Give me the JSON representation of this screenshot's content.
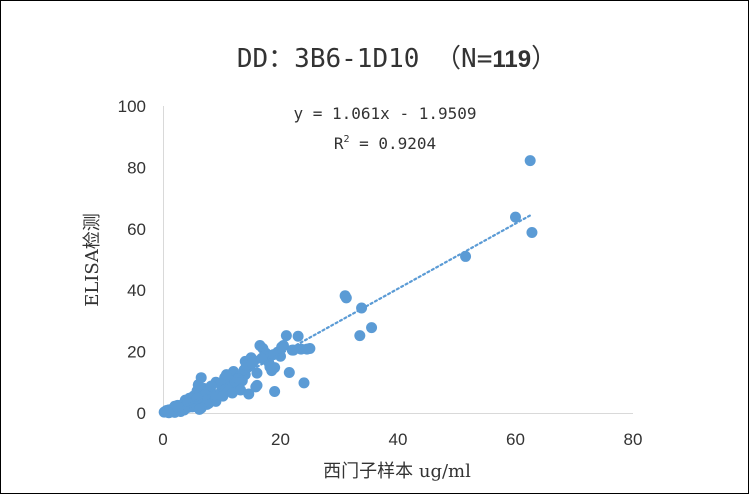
{
  "chart_data": {
    "type": "scatter",
    "title": {
      "main": "DD：3B6-1D10 （N=",
      "n": "119",
      "close": "）"
    },
    "xlabel": "西门子样本 ug/ml",
    "ylabel": "ELISA检测",
    "xlim": [
      0,
      80
    ],
    "ylim": [
      0,
      100
    ],
    "x_ticks": [
      "0",
      "20",
      "40",
      "60",
      "80"
    ],
    "y_ticks": [
      "0",
      "20",
      "40",
      "60",
      "80",
      "100"
    ],
    "grid": false,
    "legend": "none",
    "marker_color": "#5b9bd5",
    "trendline": {
      "type": "linear",
      "slope": 1.061,
      "intercept": -1.9509,
      "color": "#5b9bd5",
      "x_range": [
        1.85,
        62.8
      ],
      "equation_text": "y = 1.061x - 1.9509",
      "r2_prefix": "R",
      "r2_sup": "2",
      "r2_suffix": " = 0.9204"
    },
    "x": [
      0.2,
      0.4,
      0.6,
      0.8,
      1.0,
      1.2,
      1.5,
      1.8,
      2.0,
      2.2,
      2.5,
      2.8,
      3.0,
      3.2,
      3.5,
      3.8,
      4.0,
      4.2,
      4.5,
      4.8,
      5.0,
      5.2,
      5.5,
      5.8,
      6.0,
      6.2,
      6.5,
      6.8,
      7.0,
      7.2,
      7.5,
      7.8,
      8.0,
      8.5,
      9.0,
      9.5,
      10.0,
      10.5,
      11.0,
      11.5,
      12.0,
      12.5,
      13.0,
      13.5,
      14.0,
      14.5,
      15.0,
      15.5,
      16.0,
      16.5,
      17.0,
      17.5,
      18.0,
      18.5,
      19.0,
      19.5,
      20.0,
      20.5,
      21.0,
      22.0,
      23.0,
      23.5,
      24.0,
      25.0,
      24.5,
      21.5,
      19.0,
      16.0,
      14.0,
      12.5,
      11.0,
      9.0,
      7.5,
      6.5,
      5.5,
      3.0,
      2.0,
      1.0,
      0.5,
      4.5,
      6.2,
      8.8,
      10.2,
      11.8,
      13.2,
      14.6,
      15.8,
      17.2,
      18.2,
      19.8,
      20.2,
      22.2,
      31.0,
      31.2,
      33.8,
      33.5,
      35.5,
      51.5,
      60.0,
      62.5,
      62.8,
      12.2,
      13.8,
      9.8,
      8.2,
      7.2,
      5.8,
      4.2,
      3.6,
      2.6,
      1.6,
      0.9,
      6.0,
      16.8,
      18.8,
      10.8,
      12.8,
      14.2,
      15.2
    ],
    "y": [
      0.3,
      0.5,
      0.8,
      0.4,
      1.0,
      0.6,
      1.2,
      1.5,
      2.2,
      1.0,
      2.5,
      1.8,
      1.0,
      2.2,
      3.0,
      4.2,
      2.5,
      1.8,
      4.8,
      3.5,
      2.0,
      5.5,
      4.0,
      7.2,
      3.2,
      6.0,
      11.5,
      5.5,
      8.0,
      4.5,
      6.8,
      3.2,
      5.5,
      4.2,
      10.0,
      5.8,
      7.5,
      11.5,
      10.0,
      8.0,
      13.5,
      11.0,
      12.0,
      10.5,
      16.8,
      15.0,
      18.0,
      17.0,
      9.0,
      22.0,
      21.0,
      19.5,
      16.5,
      13.8,
      14.8,
      19.8,
      18.5,
      22.0,
      25.2,
      20.5,
      25.0,
      20.8,
      9.8,
      21.0,
      20.8,
      13.2,
      7.0,
      13.0,
      12.5,
      9.2,
      8.0,
      3.8,
      2.8,
      1.6,
      2.2,
      0.5,
      0.2,
      0.1,
      0.4,
      2.0,
      1.2,
      6.0,
      5.5,
      6.5,
      7.5,
      6.2,
      8.5,
      18.5,
      15.0,
      20.0,
      21.5,
      20.5,
      38.2,
      37.5,
      34.2,
      25.2,
      27.8,
      51.0,
      63.8,
      82.2,
      58.8,
      10.5,
      14.0,
      9.5,
      8.8,
      6.0,
      4.8,
      3.2,
      1.0,
      1.8,
      0.8,
      0.2,
      9.2,
      17.8,
      19.0,
      12.5,
      11.2,
      15.5,
      16.2
    ]
  }
}
